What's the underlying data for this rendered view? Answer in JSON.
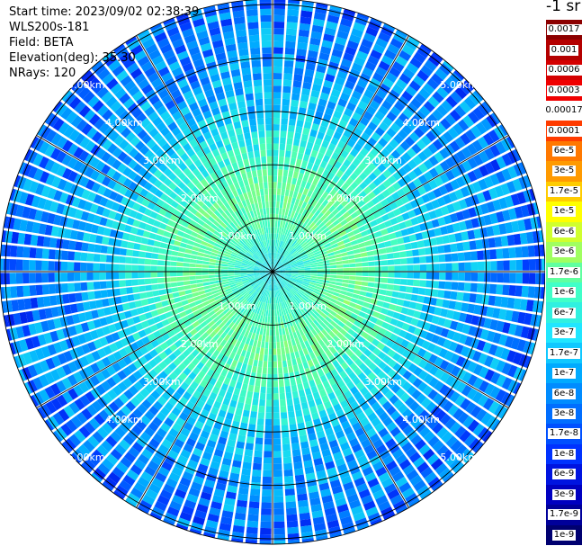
{
  "info": {
    "start_time": "Start time: 2023/09/02 02:38:39",
    "device": "WLS200s-181",
    "field": "Field: BETA",
    "elevation": "Elevation(deg): 35.30",
    "nrays": "NRays: 120"
  },
  "unit_label": "-1 sr",
  "chart_data": {
    "type": "heatmap",
    "projection": "polar-ppi",
    "field": "BETA",
    "n_rays": 120,
    "elevation_deg": 35.3,
    "max_range_km": 5.1,
    "range_rings_km": [
      1,
      2,
      3,
      4,
      5
    ],
    "ring_labels": [
      "1.00km",
      "2.00km",
      "3.00km",
      "4.00km",
      "5.00km"
    ],
    "spoke_step_deg": 30,
    "radial_profile": [
      {
        "range_km": 0.0,
        "value": 5e-08
      },
      {
        "range_km": 0.5,
        "value": 1.2e-07
      },
      {
        "range_km": 1.0,
        "value": 2.5e-07
      },
      {
        "range_km": 1.5,
        "value": 3.5e-07
      },
      {
        "range_km": 2.0,
        "value": 2e-07
      },
      {
        "range_km": 2.5,
        "value": 1e-07
      },
      {
        "range_km": 3.0,
        "value": 4e-08
      },
      {
        "range_km": 3.5,
        "value": 2.5e-08
      },
      {
        "range_km": 4.0,
        "value": 1.7e-08
      },
      {
        "range_km": 4.5,
        "value": 1.4e-08
      },
      {
        "range_km": 5.0,
        "value": 1.2e-08
      }
    ],
    "colorbar": {
      "labels": [
        "0.0017",
        "0.001",
        "0.0006",
        "0.0003",
        "0.00017",
        "0.0001",
        "6e-5",
        "3e-5",
        "1.7e-5",
        "1e-5",
        "6e-6",
        "3e-6",
        "1.7e-6",
        "1e-6",
        "6e-7",
        "3e-7",
        "1.7e-7",
        "1e-7",
        "6e-8",
        "3e-8",
        "1.7e-8",
        "1e-8",
        "6e-9",
        "3e-9",
        "1.7e-9",
        "1e-9"
      ],
      "colors": [
        "#8c0000",
        "#b40000",
        "#d40000",
        "#f00000",
        "#ffffff",
        "#ff3c00",
        "#ff7800",
        "#ff9a00",
        "#ffcc00",
        "#ffff00",
        "#d0ff2e",
        "#a0ff60",
        "#60ffa0",
        "#40ffc8",
        "#30f0e0",
        "#20e6ff",
        "#10c8ff",
        "#00aaff",
        "#008cff",
        "#006eff",
        "#0050ff",
        "#0032ff",
        "#0014e0",
        "#0000c0",
        "#00009a",
        "#000070"
      ]
    }
  }
}
